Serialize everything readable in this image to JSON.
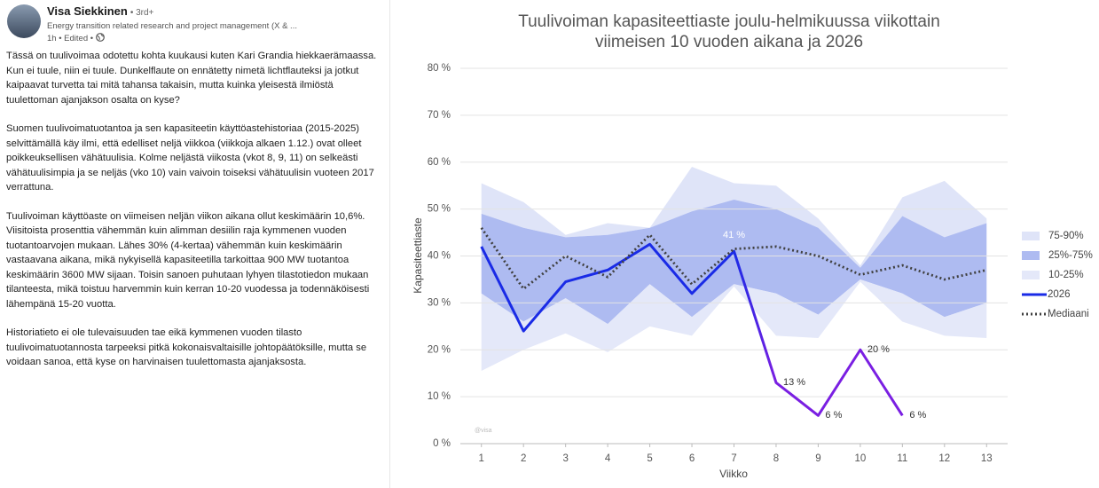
{
  "post": {
    "author": "Visa Siekkinen",
    "degree": "• 3rd+",
    "headline": "Energy transition related research and project management (X & ...",
    "meta": "1h • Edited •",
    "paragraphs": [
      "Tässä on tuulivoimaa odotettu kohta kuukausi kuten Kari Grandia hiekkaerämaassa. Kun ei tuule, niin ei tuule. Dunkelflaute on ennätetty nimetä lichtflauteksi ja jotkut kaipaavat turvetta tai mitä tahansa takaisin, mutta kuinka yleisestä ilmiöstä tuulettoman ajanjakson osalta on kyse?",
      "Suomen tuulivoimatuotantoa ja sen kapasiteetin käyttöastehistoriaa (2015-2025) selvittämällä käy ilmi, että edelliset neljä viikkoa (viikkoja alkaen 1.12.) ovat olleet poikkeuksellisen vähätuulisia. Kolme neljästä viikosta (vkot 8, 9, 11) on selkeästi vähätuulisimpia ja se neljäs (vko 10) vain vaivoin toiseksi vähätuulisin vuoteen 2017 verrattuna.",
      "Tuulivoiman käyttöaste on viimeisen neljän viikon aikana ollut keskimäärin 10,6%. Viisitoista prosenttia vähemmän kuin alimman desiilin raja kymmenen vuoden tuotantoarvojen mukaan. Lähes 30% (4-kertaa) vähemmän kuin keskimäärin vastaavana aikana, mikä nykyisellä kapasiteetilla tarkoittaa 900 MW tuotantoa keskimäärin 3600 MW sijaan. Toisin sanoen puhutaan lyhyen tilastotiedon mukaan tilanteesta, mikä toistuu harvemmin kuin kerran 10-20 vuodessa ja todennäköisesti lähempänä 15-20 vuotta.",
      "Historiatieto ei ole tulevaisuuden tae eikä kymmenen vuoden tilasto tuulivoimatuotannosta tarpeeksi pitkä kokonaisvaltaisille johtopäätöksille, mutta se voidaan sanoa, että kyse on harvinaisen tuulettomasta ajanjaksosta."
    ]
  },
  "chart_data": {
    "type": "band-line",
    "title": "Tuulivoiman kapasiteettiaste joulu-helmikuussa viikottain",
    "subtitle": "viimeisen 10 vuoden aikana ja 2026",
    "x_label": "Viikko",
    "y_label": "Kapasiteettiaste",
    "watermark": "@visa",
    "x": [
      1,
      2,
      3,
      4,
      5,
      6,
      7,
      8,
      9,
      10,
      11,
      12,
      13
    ],
    "xlim": [
      0.5,
      13.5
    ],
    "xticks": [
      1,
      2,
      3,
      4,
      5,
      6,
      7,
      8,
      9,
      10,
      11,
      12,
      13
    ],
    "ylim": [
      0,
      80
    ],
    "yticks": [
      {
        "value": 0,
        "label": "0 %"
      },
      {
        "value": 10,
        "label": "10 %"
      },
      {
        "value": 20,
        "label": "20 %"
      },
      {
        "value": 30,
        "label": "30 %"
      },
      {
        "value": 40,
        "label": "40 %"
      },
      {
        "value": 50,
        "label": "50 %"
      },
      {
        "value": 60,
        "label": "60 %"
      },
      {
        "value": 70,
        "label": "70 %"
      },
      {
        "value": 80,
        "label": "80 %"
      }
    ],
    "grid": true,
    "legend": "right",
    "series": [
      {
        "name": "75-90%",
        "kind": "band",
        "color": "#dfe4f8",
        "upper": [
          55.5,
          51.5,
          44.5,
          47,
          46,
          59,
          55.5,
          55,
          48,
          38,
          52.5,
          56,
          48
        ],
        "lower": [
          49,
          46,
          44,
          44.5,
          46,
          49.5,
          52,
          50,
          46,
          37.5,
          48.5,
          44,
          47
        ]
      },
      {
        "name": "25%-75%",
        "kind": "band",
        "color": "#aebbf1",
        "upper": [
          49,
          46,
          44,
          44.5,
          46,
          49.5,
          52,
          50,
          46,
          37.5,
          48.5,
          44,
          47
        ],
        "lower": [
          32,
          26,
          31,
          25.5,
          34,
          27,
          34,
          32,
          27.5,
          35,
          32,
          27,
          30
        ]
      },
      {
        "name": "10-25%",
        "kind": "band",
        "color": "#e4e8f9",
        "upper": [
          32,
          26,
          31,
          25.5,
          34,
          27,
          34,
          32,
          27.5,
          35,
          32,
          27,
          30
        ],
        "lower": [
          15.5,
          20,
          23.5,
          19.5,
          25,
          23,
          33.5,
          23,
          22.5,
          34.5,
          26,
          23,
          22.5
        ]
      },
      {
        "name": "2026",
        "kind": "line",
        "color": "#1a2be6",
        "color_end": "#7a1fe2",
        "values": [
          42,
          24,
          34.5,
          37,
          42.5,
          32,
          41,
          13,
          6,
          20,
          6,
          null,
          null
        ],
        "value_labels": [
          null,
          null,
          null,
          null,
          null,
          null,
          "41 %",
          "13 %",
          "6 %",
          "20 %",
          "6 %",
          null,
          null
        ]
      },
      {
        "name": "Mediaani",
        "kind": "dotted",
        "color": "#404040",
        "values": [
          46,
          33,
          40,
          35.5,
          44.5,
          34,
          41.5,
          42,
          40,
          36,
          38,
          35,
          37
        ]
      }
    ]
  }
}
